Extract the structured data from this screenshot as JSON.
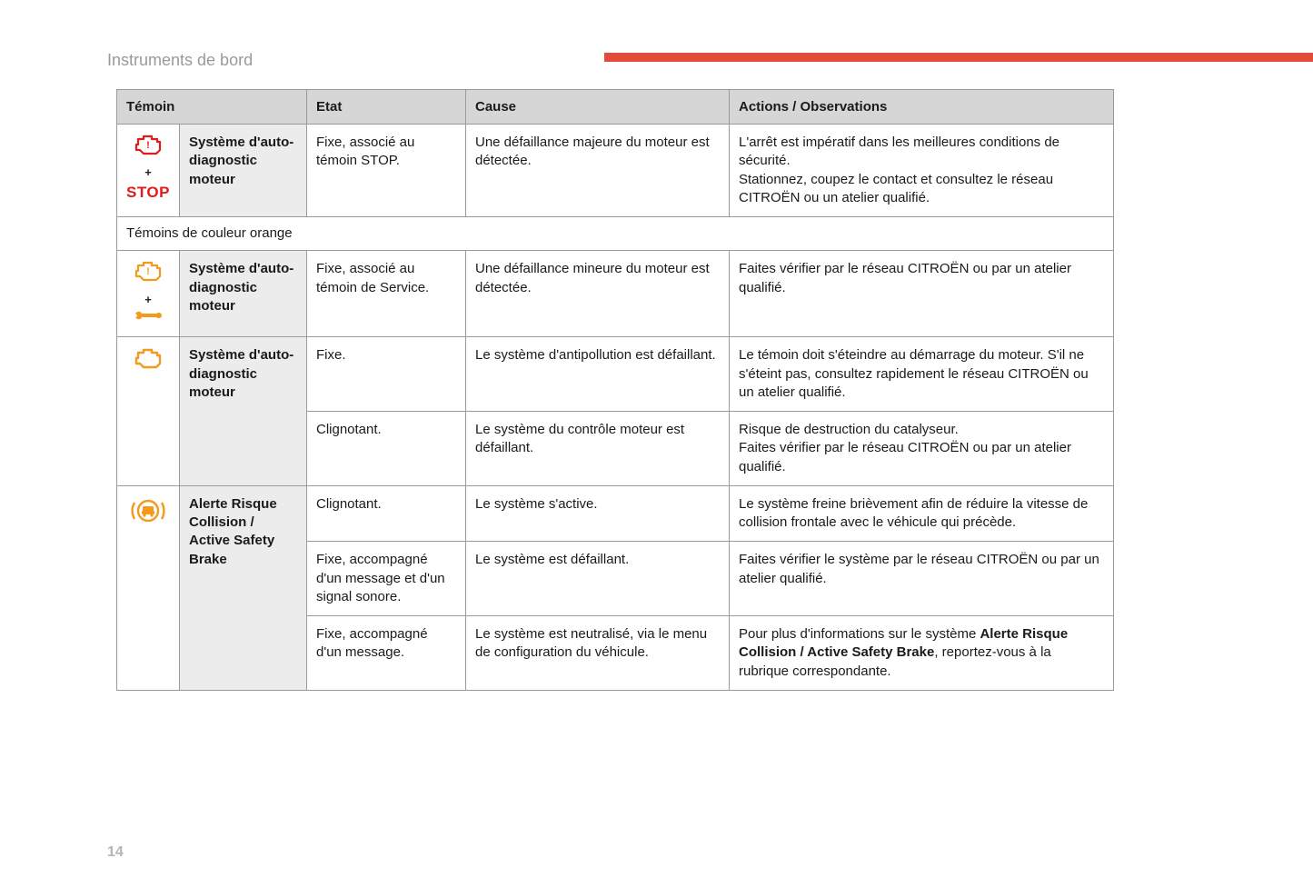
{
  "page": {
    "title": "Instruments de bord",
    "number": "14",
    "accent_color": "#e14b3b",
    "border_color": "#9a9a9a",
    "header_bg": "#d6d6d6",
    "name_bg": "#ececec",
    "text_color": "#1a1a1a",
    "fontsize_body": 15,
    "fontsize_title": 18
  },
  "icons": {
    "red": "#e11b1b",
    "orange": "#f59a1d"
  },
  "headers": {
    "temoin": "Témoin",
    "etat": "Etat",
    "cause": "Cause",
    "actions": "Actions / Observations"
  },
  "section_orange": "Témoins de couleur orange",
  "rows": {
    "r1": {
      "icon_type": "engine+stop",
      "plus": "+",
      "stop": "STOP",
      "name": "Système d'auto-diagnostic moteur",
      "etat": "Fixe, associé au témoin STOP.",
      "cause": "Une défaillance majeure du moteur est détectée.",
      "actions": "L'arrêt est impératif dans les meilleures conditions de sécurité.\nStationnez, coupez le contact et consultez le réseau CITROËN ou un atelier qualifié."
    },
    "r2": {
      "icon_type": "engine+wrench",
      "plus": "+",
      "name": "Système d'auto-diagnostic moteur",
      "etat": "Fixe, associé au témoin de Service.",
      "cause": "Une défaillance mineure du moteur est détectée.",
      "actions": "Faites vérifier par le réseau CITROËN ou par un atelier qualifié."
    },
    "r3": {
      "icon_type": "engine",
      "name": "Système d'auto-diagnostic moteur",
      "etat": "Fixe.",
      "cause": "Le système d'antipollution est défaillant.",
      "actions": "Le témoin doit s'éteindre au démarrage du moteur. S'il ne s'éteint pas, consultez rapidement le réseau CITROËN ou un atelier qualifié."
    },
    "r3b": {
      "etat": "Clignotant.",
      "cause": "Le système du contrôle moteur est défaillant.",
      "actions": "Risque de destruction du catalyseur.\nFaites vérifier par le réseau CITROËN ou par un atelier qualifié."
    },
    "r4": {
      "icon_type": "collision",
      "name": "Alerte Risque Collision / Active Safety Brake",
      "etat": "Clignotant.",
      "cause": "Le système s'active.",
      "actions": "Le système freine brièvement afin de réduire la vitesse de collision frontale avec le véhicule qui précède."
    },
    "r4b": {
      "etat": "Fixe, accompagné d'un message et d'un signal sonore.",
      "cause": "Le système est défaillant.",
      "actions": "Faites vérifier le système par le réseau CITROËN ou par un atelier qualifié."
    },
    "r4c": {
      "etat": "Fixe, accompagné d'un message.",
      "cause": "Le système est neutralisé, via le menu de configuration du véhicule.",
      "actions_prefix": "Pour plus d'informations sur le système ",
      "actions_bold": "Alerte Risque Collision / Active Safety Brake",
      "actions_suffix": ", reportez-vous à la rubrique correspondante."
    }
  }
}
